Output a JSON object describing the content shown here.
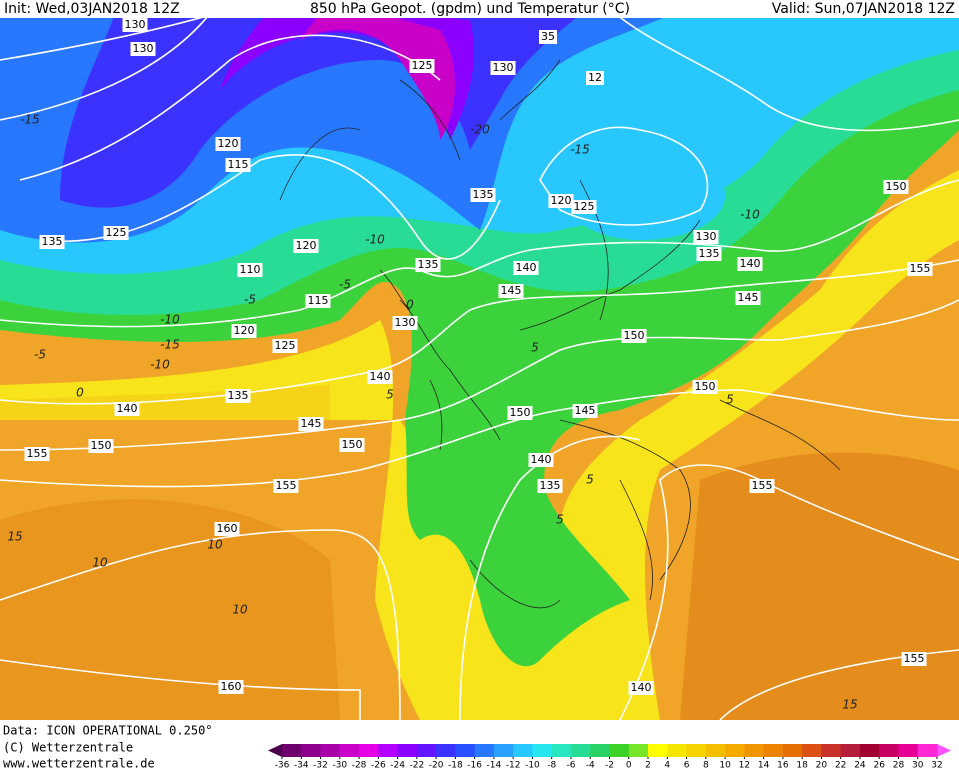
{
  "header": {
    "init": "Init: Wed,03JAN2018 12Z",
    "title": "850 hPa Geopot. (gpdm) und Temperatur (°C)",
    "valid": "Valid: Sun,07JAN2018 12Z"
  },
  "footer": {
    "data": "Data: ICON OPERATIONAL 0.250°",
    "copyright": "(C) Wetterzentrale",
    "url": "www.wetterzentrale.de"
  },
  "map": {
    "geopotential_labels": [
      130,
      130,
      125,
      130,
      35,
      12,
      120,
      115,
      135,
      125,
      110,
      120,
      135,
      135,
      120,
      125,
      130,
      135,
      140,
      140,
      145,
      145,
      150,
      155,
      115,
      130,
      120,
      125,
      150,
      140,
      150,
      135,
      140,
      145,
      145,
      150,
      150,
      150,
      155,
      140,
      135,
      155,
      155,
      160,
      160,
      140,
      155
    ],
    "temperature_labels": [
      -15,
      -10,
      -5,
      -15,
      -10,
      -5,
      0,
      5,
      -10,
      -5,
      0,
      5,
      5,
      10,
      15,
      10,
      10,
      15,
      -10,
      -15,
      -20,
      5,
      5
    ]
  },
  "colorbar": {
    "ticks": [
      -36,
      -34,
      -32,
      -30,
      -28,
      -26,
      -24,
      -22,
      -20,
      -18,
      -16,
      -14,
      -12,
      -10,
      -8,
      -6,
      -4,
      -2,
      0,
      2,
      4,
      6,
      8,
      10,
      12,
      14,
      16,
      18,
      20,
      22,
      24,
      26,
      28,
      30,
      32
    ],
    "colors": [
      "#6e006e",
      "#8c008c",
      "#aa00aa",
      "#c800c8",
      "#e600e6",
      "#b400ff",
      "#8c00ff",
      "#6414ff",
      "#3c32ff",
      "#2850ff",
      "#2878ff",
      "#28a0ff",
      "#28c8ff",
      "#28e6f0",
      "#28e6c0",
      "#28dc96",
      "#28d264",
      "#3cd228",
      "#78e628",
      "#ffff00",
      "#f5e600",
      "#f5d200",
      "#f5be00",
      "#f5aa00",
      "#f09600",
      "#eb8200",
      "#e66e00",
      "#dc5014",
      "#c83228",
      "#b41e3c",
      "#a00032",
      "#c80064",
      "#e60096",
      "#ff28d2"
    ]
  }
}
